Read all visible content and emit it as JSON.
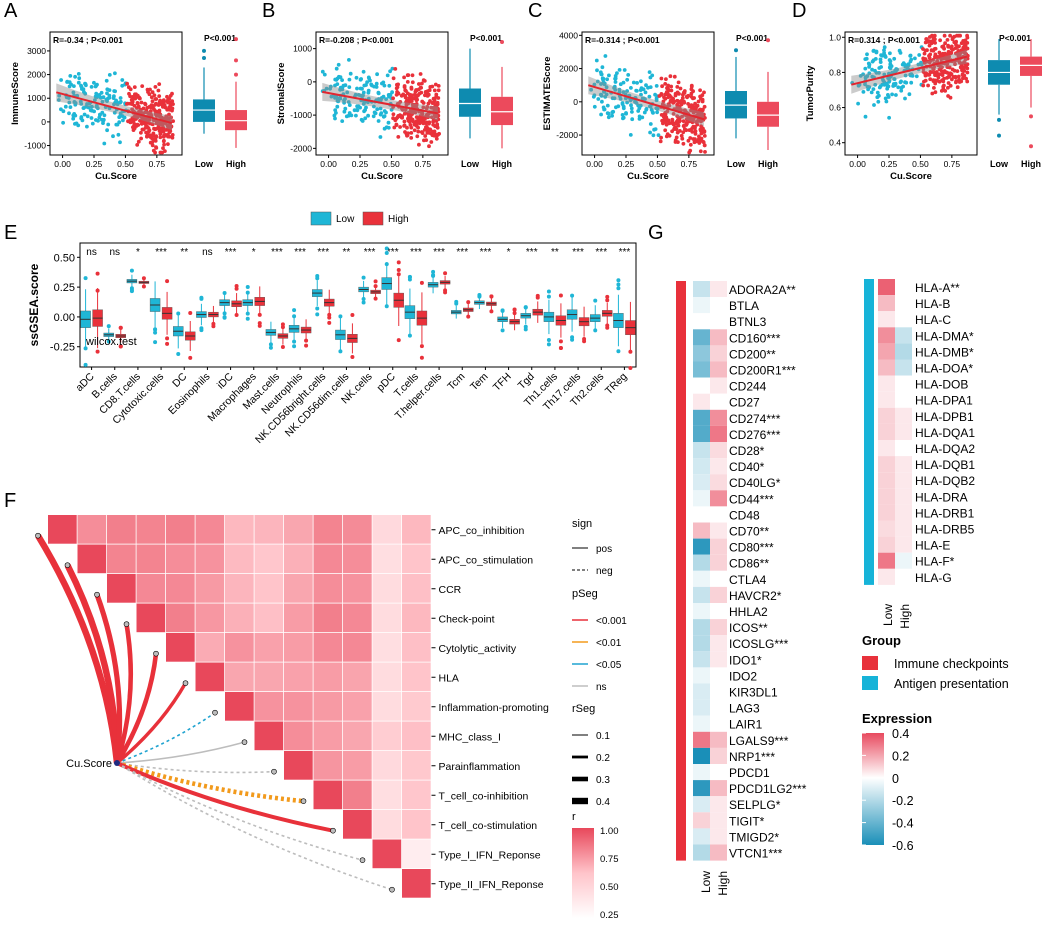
{
  "panel_labels": {
    "A": "A",
    "B": "B",
    "C": "C",
    "D": "D",
    "E": "E",
    "F": "F",
    "G": "G"
  },
  "colors": {
    "low": "#1FB6D6",
    "high": "#E9313A",
    "low_box": "#0E8BB0",
    "high_box": "#EC4A5C",
    "heat_pos": "#E84A5F",
    "heat_neg": "#2E97BB"
  },
  "chart_data": [
    {
      "type": "scatter",
      "panel": "A",
      "stat": "R=-0.34 ; P<0.001",
      "xlabel": "Cu.Score",
      "ylabel": "ImmuneScore",
      "xlim": [
        -0.1,
        0.95
      ],
      "ylim": [
        -1400,
        3800
      ],
      "xticks": [
        "0.00",
        "0.25",
        "0.50",
        "0.75"
      ],
      "yticks": [
        "-1000",
        "0",
        "1000",
        "2000",
        "3000"
      ],
      "fit": {
        "x": [
          -0.05,
          0.87
        ],
        "y": [
          1250,
          -50
        ]
      },
      "box": {
        "title": "P<0.001",
        "categories": [
          "Low",
          "High"
        ],
        "ylim": [
          -1400,
          3800
        ],
        "low": {
          "min": -500,
          "q1": 0,
          "median": 500,
          "q3": 950,
          "max": 2300,
          "outliers": [
            2700,
            3000
          ]
        },
        "high": {
          "min": -1100,
          "q1": -350,
          "median": 50,
          "q3": 500,
          "max": 1700,
          "outliers": [
            2000,
            2600,
            3500
          ]
        }
      }
    },
    {
      "type": "scatter",
      "panel": "B",
      "stat": "R=-0.208 ; P<0.001",
      "xlabel": "Cu.Score",
      "ylabel": "StromalScore",
      "xlim": [
        -0.1,
        0.95
      ],
      "ylim": [
        -2200,
        1500
      ],
      "xticks": [
        "0.00",
        "0.25",
        "0.50",
        "0.75"
      ],
      "yticks": [
        "-2000",
        "-1000",
        "0",
        "1000"
      ],
      "fit": {
        "x": [
          -0.05,
          0.87
        ],
        "y": [
          -300,
          -950
        ]
      },
      "box": {
        "title": "P<0.001",
        "categories": [
          "Low",
          "High"
        ],
        "ylim": [
          -2200,
          1500
        ],
        "low": {
          "min": -1700,
          "q1": -1050,
          "median": -650,
          "q3": -200,
          "max": 1000,
          "outliers": []
        },
        "high": {
          "min": -2000,
          "q1": -1300,
          "median": -900,
          "q3": -450,
          "max": 450,
          "outliers": [
            1200
          ]
        }
      }
    },
    {
      "type": "scatter",
      "panel": "C",
      "stat": "R=-0.314 ; P<0.001",
      "xlabel": "Cu.Score",
      "ylabel": "ESTIMATEScore",
      "xlim": [
        -0.1,
        0.95
      ],
      "ylim": [
        -3200,
        4200
      ],
      "xticks": [
        "0.00",
        "0.25",
        "0.50",
        "0.75"
      ],
      "yticks": [
        "-2000",
        "0",
        "2000",
        "4000"
      ],
      "fit": {
        "x": [
          -0.05,
          0.87
        ],
        "y": [
          1000,
          -1050
        ]
      },
      "box": {
        "title": "P<0.001",
        "categories": [
          "Low",
          "High"
        ],
        "ylim": [
          -3200,
          4200
        ],
        "low": {
          "min": -2200,
          "q1": -1000,
          "median": -200,
          "q3": 650,
          "max": 2700,
          "outliers": [
            3100
          ]
        },
        "high": {
          "min": -2900,
          "q1": -1500,
          "median": -800,
          "q3": 0,
          "max": 1800,
          "outliers": [
            3700
          ]
        }
      }
    },
    {
      "type": "scatter",
      "panel": "D",
      "stat": "R=0.314 ; P<0.001",
      "xlabel": "Cu.Score",
      "ylabel": "TumorPurity",
      "xlim": [
        -0.1,
        0.95
      ],
      "ylim": [
        0.33,
        1.03
      ],
      "xticks": [
        "0.00",
        "0.25",
        "0.50",
        "0.75"
      ],
      "yticks": [
        "0.4",
        "0.6",
        "0.8",
        "1.0"
      ],
      "fit": {
        "x": [
          -0.05,
          0.87
        ],
        "y": [
          0.73,
          0.89
        ]
      },
      "box": {
        "title": "P<0.001",
        "categories": [
          "Low",
          "High"
        ],
        "ylim": [
          0.33,
          1.03
        ],
        "low": {
          "min": 0.56,
          "q1": 0.73,
          "median": 0.8,
          "q3": 0.87,
          "max": 0.99,
          "outliers": [
            0.53,
            0.44
          ]
        },
        "high": {
          "min": 0.6,
          "q1": 0.78,
          "median": 0.84,
          "q3": 0.89,
          "max": 0.99,
          "outliers": [
            0.55,
            0.38
          ]
        }
      }
    },
    {
      "type": "box",
      "panel": "E",
      "ylabel": "ssGSEA.score",
      "note": "wilcox.test",
      "legend": [
        "Low",
        "High"
      ],
      "ylim": [
        -0.42,
        0.62
      ],
      "yticks": [
        "-0.25",
        "0.00",
        "0.25",
        "0.50"
      ],
      "categories": [
        "aDC",
        "B.cells",
        "CD8.T.cells",
        "Cytotoxic.cells",
        "DC",
        "Eosinophils",
        "iDC",
        "Macrophages",
        "Mast.cells",
        "Neutrophils",
        "NK.CD56bright.cells",
        "NK.CD56dim.cells",
        "NK.cells",
        "pDC",
        "T.cells",
        "T.helper.cells",
        "Tcm",
        "Tem",
        "TFH",
        "Tgd",
        "Th1.cells",
        "Th17.cells",
        "Th2.cells",
        "TReg"
      ],
      "significance": [
        "ns",
        "ns",
        "*",
        "***",
        "**",
        "ns",
        "***",
        "*",
        "***",
        "***",
        "***",
        "**",
        "***",
        "***",
        "***",
        "***",
        "***",
        "***",
        "*",
        "***",
        "**",
        "***",
        "***",
        "***"
      ],
      "low_median": [
        -0.02,
        -0.15,
        0.3,
        0.1,
        -0.12,
        0.02,
        0.12,
        0.12,
        -0.13,
        -0.1,
        0.2,
        -0.15,
        0.23,
        0.28,
        0.04,
        0.27,
        0.04,
        0.12,
        -0.02,
        0.01,
        0.0,
        0.02,
        -0.01,
        -0.03
      ],
      "low_iqr": [
        0.14,
        0.03,
        0.03,
        0.11,
        0.08,
        0.05,
        0.05,
        0.05,
        0.05,
        0.06,
        0.06,
        0.08,
        0.04,
        0.1,
        0.11,
        0.04,
        0.03,
        0.03,
        0.04,
        0.04,
        0.08,
        0.08,
        0.06,
        0.12
      ],
      "high_median": [
        -0.01,
        -0.16,
        0.29,
        0.03,
        -0.16,
        0.02,
        0.11,
        0.13,
        -0.16,
        -0.11,
        0.12,
        -0.18,
        0.21,
        0.14,
        -0.01,
        0.29,
        0.06,
        0.11,
        -0.04,
        0.04,
        -0.03,
        -0.04,
        0.03,
        -0.09
      ],
      "high_iqr": [
        0.14,
        0.03,
        0.02,
        0.1,
        0.07,
        0.04,
        0.05,
        0.07,
        0.04,
        0.05,
        0.06,
        0.07,
        0.03,
        0.12,
        0.12,
        0.03,
        0.03,
        0.03,
        0.04,
        0.05,
        0.08,
        0.07,
        0.05,
        0.12
      ]
    },
    {
      "type": "heatmap",
      "panel": "F",
      "labels": [
        "APC_co_inhibition",
        "APC_co_stimulation",
        "CCR",
        "Check-point",
        "Cytolytic_activity",
        "HLA",
        "Inflammation-promoting",
        "MHC_class_I",
        "Parainflammation",
        "T_cell_co-inhibition",
        "T_cell_co-stimulation",
        "Type_I_IFN_Reponse",
        "Type_II_IFN_Reponse"
      ],
      "row_values": [
        [
          1.0,
          0.72,
          0.78,
          0.76,
          0.78,
          0.74,
          0.55,
          0.56,
          0.62,
          0.76,
          0.73,
          0.32,
          0.55
        ],
        [
          1.0,
          0.76,
          0.76,
          0.72,
          0.7,
          0.54,
          0.48,
          0.58,
          0.74,
          0.72,
          0.28,
          0.5
        ],
        [
          1.0,
          0.74,
          0.74,
          0.67,
          0.56,
          0.5,
          0.62,
          0.72,
          0.7,
          0.3,
          0.52
        ],
        [
          1.0,
          0.78,
          0.68,
          0.58,
          0.52,
          0.66,
          0.78,
          0.74,
          0.3,
          0.55
        ],
        [
          1.0,
          0.6,
          0.7,
          0.64,
          0.66,
          0.74,
          0.74,
          0.28,
          0.52
        ],
        [
          1.0,
          0.62,
          0.62,
          0.64,
          0.66,
          0.63,
          0.3,
          0.5
        ],
        [
          1.0,
          0.7,
          0.7,
          0.67,
          0.64,
          0.3,
          0.45
        ],
        [
          1.0,
          0.72,
          0.66,
          0.62,
          0.42,
          0.52
        ],
        [
          1.0,
          0.69,
          0.66,
          0.32,
          0.47
        ],
        [
          1.0,
          0.78,
          0.28,
          0.48
        ],
        [
          1.0,
          0.3,
          0.5
        ],
        [
          1.0,
          0.15
        ],
        [
          1.0
        ]
      ],
      "legend_sign": {
        "title": "sign",
        "items": [
          "pos",
          "neg"
        ]
      },
      "legend_pseg": {
        "title": "pSeg",
        "items": [
          "<0.001",
          "<0.01",
          "<0.05",
          "ns"
        ]
      },
      "legend_rseg": {
        "title": "rSeg",
        "items": [
          "0.1",
          "0.2",
          "0.3",
          "0.4"
        ]
      },
      "colorbar": {
        "title": "r",
        "ticks": [
          "1.00",
          "0.75",
          "0.50",
          "0.25"
        ]
      },
      "center_label": "Cu.Score",
      "links_r": [
        0.45,
        0.45,
        0.35,
        0.3,
        0.3,
        0.2,
        0.05,
        0.05,
        0.05,
        0.3,
        0.25,
        0.05,
        0.05
      ],
      "links_p": [
        "<0.001",
        "<0.001",
        "<0.001",
        "<0.001",
        "<0.001",
        "<0.001",
        "<0.05",
        "ns",
        "ns",
        "<0.01",
        "<0.001",
        "ns",
        "ns"
      ],
      "links_sign": [
        "pos",
        "pos",
        "pos",
        "pos",
        "pos",
        "pos",
        "neg",
        "pos",
        "neg",
        "neg",
        "pos",
        "neg",
        "neg"
      ]
    },
    {
      "type": "heatmap",
      "panel": "G",
      "columns": [
        "Low",
        "High"
      ],
      "checkpoint_genes": [
        "ADORA2A**",
        "BTLA",
        "BTNL3",
        "CD160***",
        "CD200**",
        "CD200R1***",
        "CD244",
        "CD27",
        "CD274***",
        "CD276***",
        "CD28*",
        "CD40*",
        "CD40LG*",
        "CD44***",
        "CD48",
        "CD70**",
        "CD80***",
        "CD86**",
        "CTLA4",
        "HAVCR2*",
        "HHLA2",
        "ICOS**",
        "ICOSLG***",
        "IDO1*",
        "IDO2",
        "KIR3DL1",
        "LAG3",
        "LAIR1",
        "LGALS9***",
        "NRP1***",
        "PDCD1",
        "PDCD1LG2***",
        "SELPLG*",
        "TIGIT*",
        "TMIGD2*",
        "VTCN1***"
      ],
      "checkpoint_values": [
        [
          -0.15,
          0.05
        ],
        [
          -0.05,
          0.0
        ],
        [
          0.0,
          0.0
        ],
        [
          -0.4,
          0.15
        ],
        [
          -0.3,
          0.1
        ],
        [
          -0.35,
          0.15
        ],
        [
          0.0,
          0.05
        ],
        [
          0.05,
          0.0
        ],
        [
          -0.45,
          0.25
        ],
        [
          -0.45,
          0.3
        ],
        [
          -0.15,
          0.08
        ],
        [
          -0.12,
          0.05
        ],
        [
          -0.1,
          0.08
        ],
        [
          -0.05,
          0.25
        ],
        [
          0.0,
          0.0
        ],
        [
          0.15,
          0.05
        ],
        [
          -0.55,
          0.1
        ],
        [
          -0.2,
          0.1
        ],
        [
          -0.05,
          0.0
        ],
        [
          -0.15,
          0.1
        ],
        [
          -0.05,
          0.0
        ],
        [
          -0.2,
          0.1
        ],
        [
          -0.2,
          0.05
        ],
        [
          -0.15,
          0.05
        ],
        [
          -0.05,
          0.0
        ],
        [
          -0.1,
          0.0
        ],
        [
          -0.1,
          0.0
        ],
        [
          -0.05,
          0.0
        ],
        [
          0.3,
          0.15
        ],
        [
          -0.6,
          0.1
        ],
        [
          -0.05,
          0.0
        ],
        [
          -0.55,
          0.15
        ],
        [
          -0.1,
          0.05
        ],
        [
          0.1,
          0.05
        ],
        [
          -0.1,
          0.05
        ],
        [
          -0.2,
          0.15
        ]
      ],
      "hla_genes": [
        "HLA-A**",
        "HLA-B",
        "HLA-C",
        "HLA-DMA*",
        "HLA-DMB*",
        "HLA-DOA*",
        "HLA-DOB",
        "HLA-DPA1",
        "HLA-DPB1",
        "HLA-DQA1",
        "HLA-DQA2",
        "HLA-DQB1",
        "HLA-DQB2",
        "HLA-DRA",
        "HLA-DRB1",
        "HLA-DRB5",
        "HLA-E",
        "HLA-F*",
        "HLA-G"
      ],
      "hla_values": [
        [
          0.35,
          0.0
        ],
        [
          0.15,
          0.0
        ],
        [
          0.05,
          0.0
        ],
        [
          0.25,
          -0.15
        ],
        [
          0.2,
          -0.2
        ],
        [
          0.15,
          -0.15
        ],
        [
          0.05,
          0.0
        ],
        [
          0.05,
          0.0
        ],
        [
          0.1,
          0.05
        ],
        [
          0.1,
          0.05
        ],
        [
          0.05,
          0.0
        ],
        [
          0.1,
          0.05
        ],
        [
          0.1,
          0.05
        ],
        [
          0.1,
          0.05
        ],
        [
          0.1,
          0.05
        ],
        [
          0.08,
          0.05
        ],
        [
          0.1,
          0.05
        ],
        [
          0.3,
          -0.05
        ],
        [
          0.05,
          0.0
        ]
      ],
      "group_legend": {
        "title": "Group",
        "items": [
          "Immune checkpoints",
          "Antigen presentation"
        ],
        "colors": [
          "#E8313B",
          "#16B3D8"
        ]
      },
      "expr_legend": {
        "title": "Expression",
        "ticks": [
          "0.4",
          "0.2",
          "0",
          "-0.2",
          "-0.4",
          "-0.6"
        ],
        "range": [
          -0.6,
          0.4
        ]
      }
    }
  ]
}
